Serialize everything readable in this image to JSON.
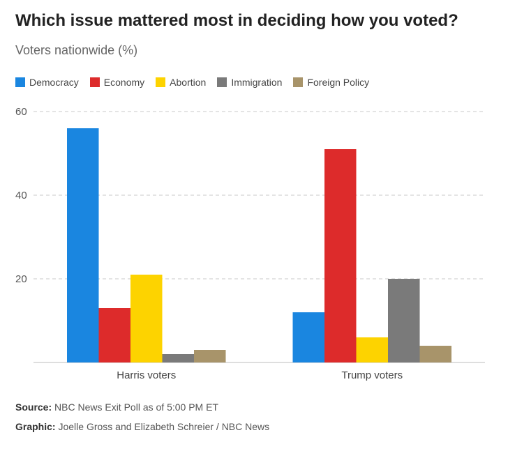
{
  "header": {
    "title": "Which issue mattered most in deciding how you voted?",
    "subtitle": "Voters nationwide (%)"
  },
  "colors": {
    "Democracy": "#1a86e0",
    "Economy": "#dd2b2b",
    "Abortion": "#fdd300",
    "Immigration": "#7a7a7a",
    "Foreign Policy": "#a8946a"
  },
  "chart_data": {
    "type": "bar",
    "categories": [
      "Harris voters",
      "Trump voters"
    ],
    "series": [
      {
        "name": "Democracy",
        "values": [
          56,
          12
        ]
      },
      {
        "name": "Economy",
        "values": [
          13,
          51
        ]
      },
      {
        "name": "Abortion",
        "values": [
          21,
          6
        ]
      },
      {
        "name": "Immigration",
        "values": [
          2,
          20
        ]
      },
      {
        "name": "Foreign Policy",
        "values": [
          3,
          4
        ]
      }
    ],
    "title": "Which issue mattered most in deciding how you voted?",
    "subtitle": "Voters nationwide (%)",
    "xlabel": "",
    "ylabel": "",
    "ylim": [
      0,
      60
    ],
    "yticks": [
      20,
      40,
      60
    ],
    "grid": true,
    "legend": "top-left"
  },
  "footer": {
    "source_label": "Source:",
    "source_text": "NBC News Exit Poll as of 5:00 PM ET",
    "graphic_label": "Graphic:",
    "graphic_text": "Joelle Gross and Elizabeth Schreier / NBC News"
  }
}
